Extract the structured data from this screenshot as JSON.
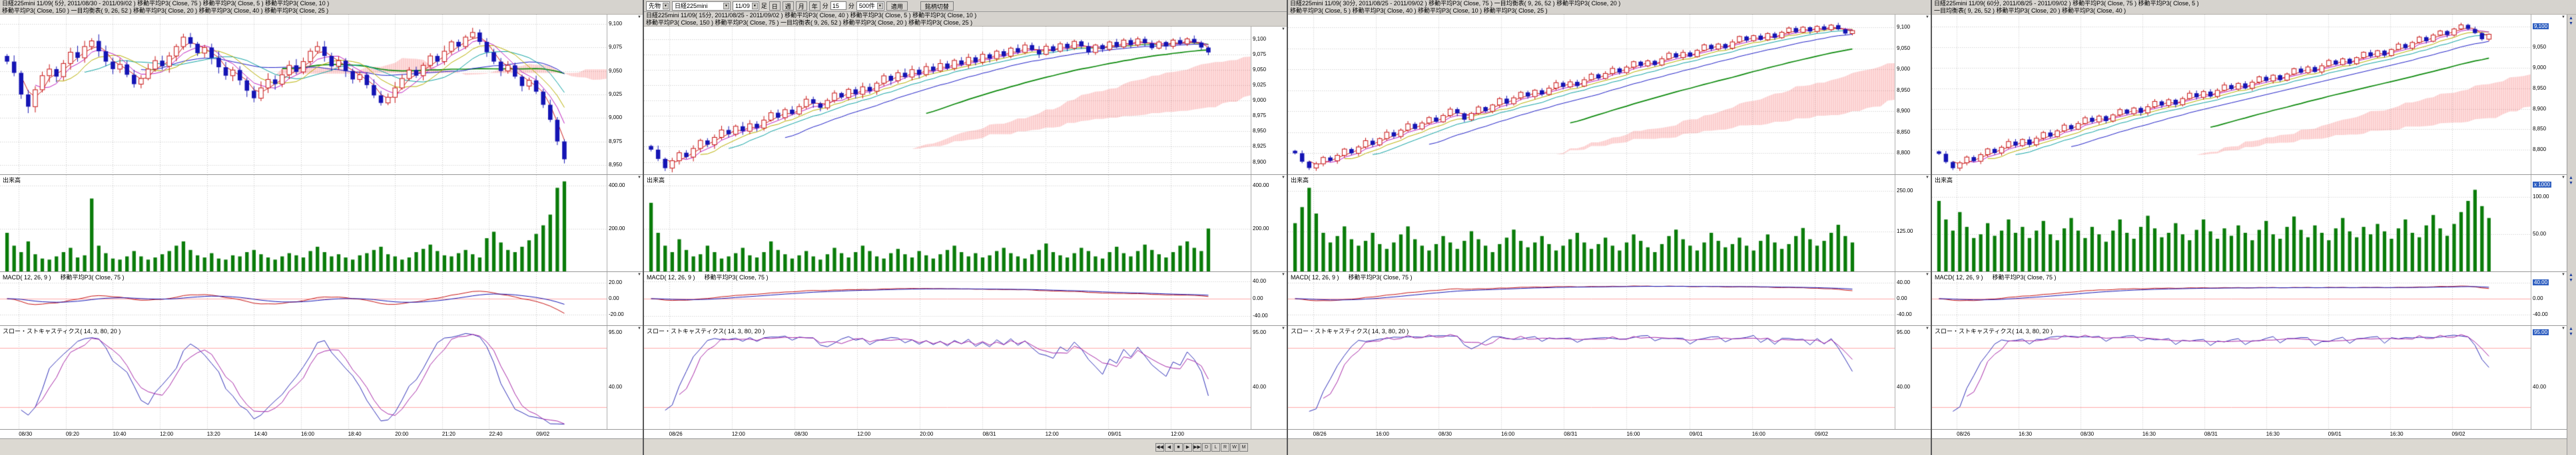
{
  "toolbar": {
    "category": "先物",
    "symbol": "日経225mini",
    "contract": "11/09",
    "bar_label": "足",
    "period_buttons": [
      "日",
      "週",
      "月",
      "年"
    ],
    "minute_label": "分",
    "minutes_value": "15",
    "minute_unit": "分",
    "count": "500件",
    "apply_label": "適用",
    "switch_label": "銘柄切替"
  },
  "nav_buttons": [
    "◀◀",
    "◀",
    "■",
    "▶",
    "▶▶",
    "D",
    "L",
    "R",
    "W",
    "M"
  ],
  "chart_data": [
    {
      "type": "candlestick",
      "name": "5min",
      "legend1": "日経225mini 11/09( 5分, 2011/08/30 - 2011/09/02 )  移動平均P3( Close, 75 )  移動平均P3( Close, 5 )  移動平均P3( Close, 10 )",
      "legend2": "移動平均P3( Close, 150 )  一目均衡表( 9, 26, 52 )  移動平均P3( Close, 20 )  移動平均P3( Close, 40 )  移動平均P3( Close, 25 )",
      "volume_label": "出来高",
      "macd_label": "MACD( 12, 26, 9 )",
      "macd_label2": "移動平均P3( Close, 75 )",
      "stoch_label": "スロー・ストキャスティクス( 14, 3, 80, 20 )",
      "y_labels": [
        "9,100",
        "9,075",
        "9,050",
        "9,025",
        "9,000",
        "8,975",
        "8,950"
      ],
      "ymin": 8940,
      "ymax": 9110,
      "vol_labels": [
        "400.00",
        "200.00"
      ],
      "vol_max": 450,
      "macd_labels": [
        "20.00",
        "0.00",
        "-20.00"
      ],
      "macd_scale": 30,
      "stoch_labels": [
        "95.00",
        "40.00"
      ],
      "x_labels": [
        "08/30",
        "09:20",
        "10:40",
        "12:00",
        "13:20",
        "14:40",
        "16:00",
        "18:40",
        "20:00",
        "21:20",
        "22:40",
        "09/02"
      ],
      "closes": [
        9060,
        9048,
        9025,
        9012,
        9030,
        9045,
        9052,
        9044,
        9058,
        9070,
        9064,
        9076,
        9082,
        9071,
        9060,
        9052,
        9057,
        9046,
        9036,
        9042,
        9052,
        9061,
        9055,
        9066,
        9076,
        9086,
        9079,
        9069,
        9075,
        9064,
        9054,
        9045,
        9051,
        9040,
        9029,
        9021,
        9032,
        9041,
        9036,
        9046,
        9056,
        9049,
        9060,
        9071,
        9076,
        9066,
        9055,
        9061,
        9050,
        9041,
        9046,
        9035,
        9024,
        9016,
        9022,
        9032,
        9042,
        9051,
        9045,
        9056,
        9066,
        9060,
        9071,
        9081,
        9076,
        9086,
        9091,
        9081,
        9070,
        9060,
        9050,
        9056,
        9044,
        9034,
        9040,
        9028,
        9014,
        8998,
        8975,
        8956
      ],
      "volumes": [
        180,
        120,
        90,
        140,
        80,
        60,
        55,
        70,
        90,
        110,
        65,
        75,
        340,
        120,
        85,
        60,
        55,
        70,
        95,
        70,
        55,
        65,
        80,
        95,
        120,
        140,
        100,
        75,
        65,
        85,
        60,
        55,
        75,
        70,
        90,
        100,
        80,
        65,
        55,
        70,
        85,
        75,
        65,
        95,
        115,
        90,
        70,
        80,
        65,
        55,
        75,
        85,
        100,
        115,
        80,
        70,
        55,
        65,
        90,
        105,
        125,
        95,
        75,
        70,
        85,
        100,
        80,
        65,
        155,
        185,
        135,
        100,
        90,
        115,
        145,
        175,
        215,
        265,
        390,
        420
      ]
    },
    {
      "type": "candlestick",
      "name": "15min",
      "has_nav": true,
      "legend1": "日経225mini 11/09( 15分, 2011/08/25 - 2011/09/02 )  移動平均P3( Close, 40 )  移動平均P3( Close, 5 )  移動平均P3( Close, 10 )",
      "legend2": "移動平均P3( Close, 150 )  移動平均P3( Close, 75 )  一目均衡表( 9, 26, 52 )  移動平均P3( Close, 20 )  移動平均P3( Close, 25 )",
      "volume_label": "出来高",
      "macd_label": "MACD( 12, 26, 9 )",
      "macd_label2": "移動平均P3( Close, 75 )",
      "stoch_label": "スロー・ストキャスティクス( 14, 3, 80, 20 )",
      "y_labels": [
        "9,100",
        "9,075",
        "9,050",
        "9,025",
        "9,000",
        "8,975",
        "8,950",
        "8,925",
        "8,900"
      ],
      "ymin": 8880,
      "ymax": 9120,
      "vol_labels": [
        "400.00",
        "200.00"
      ],
      "vol_max": 450,
      "macd_labels": [
        "40.00",
        "0.00",
        "-40.00"
      ],
      "macd_scale": 55,
      "stoch_labels": [
        "95.00",
        "40.00"
      ],
      "x_labels": [
        "08/26",
        "12:00",
        "08/30",
        "12:00",
        "20:00",
        "08/31",
        "12:00",
        "09/01",
        "12:00"
      ],
      "closes": [
        8920,
        8905,
        8890,
        8902,
        8915,
        8908,
        8922,
        8935,
        8928,
        8940,
        8952,
        8945,
        8958,
        8950,
        8962,
        8955,
        8968,
        8980,
        8972,
        8985,
        8978,
        8990,
        9002,
        8995,
        8988,
        9000,
        9012,
        9005,
        9018,
        9010,
        9022,
        9015,
        9028,
        9040,
        9032,
        9045,
        9038,
        9050,
        9042,
        9055,
        9048,
        9060,
        9052,
        9065,
        9058,
        9070,
        9062,
        9075,
        9068,
        9080,
        9072,
        9085,
        9078,
        9090,
        9082,
        9075,
        9088,
        9080,
        9092,
        9085,
        9096,
        9088,
        9078,
        9090,
        9083,
        9095,
        9087,
        9098,
        9090,
        9100,
        9093,
        9085,
        9095,
        9088,
        9098,
        9092,
        9100,
        9094,
        9086,
        9078
      ],
      "volumes": [
        320,
        180,
        120,
        90,
        150,
        100,
        70,
        80,
        120,
        90,
        60,
        70,
        85,
        110,
        75,
        65,
        90,
        140,
        100,
        80,
        60,
        75,
        95,
        70,
        55,
        80,
        110,
        85,
        65,
        90,
        120,
        95,
        70,
        60,
        85,
        105,
        80,
        65,
        95,
        75,
        60,
        80,
        100,
        120,
        90,
        70,
        85,
        65,
        75,
        95,
        110,
        85,
        70,
        60,
        80,
        100,
        130,
        90,
        75,
        65,
        85,
        110,
        95,
        70,
        60,
        90,
        115,
        85,
        70,
        95,
        125,
        100,
        80,
        65,
        90,
        120,
        140,
        110,
        95,
        200
      ]
    },
    {
      "type": "candlestick",
      "name": "30min",
      "legend1": "日経225mini 11/09( 30分, 2011/08/25 - 2011/09/02 )  移動平均P3( Close, 75 )  一目均衡表( 9, 26, 52 )  移動平均P3( Close, 20 )",
      "legend2": "移動平均P3( Close, 5 )  移動平均P3( Close, 40 )  移動平均P3( Close, 10 )  移動平均P3( Close, 25 )",
      "volume_label": "出来高",
      "macd_label": "MACD( 12, 26, 9 )",
      "macd_label2": "移動平均P3( Close, 75 )",
      "stoch_label": "スロー・ストキャスティクス( 14, 3, 80, 20 )",
      "y_labels": [
        "9,100",
        "9,050",
        "9,000",
        "8,950",
        "8,900",
        "8,850",
        "8,800"
      ],
      "ymin": 8750,
      "ymax": 9130,
      "vol_labels": [
        "250.00",
        "125.00"
      ],
      "vol_max": 300,
      "macd_labels": [
        "40.00",
        "0.00",
        "-40.00"
      ],
      "macd_scale": 60,
      "stoch_labels": [
        "95.00",
        "40.00"
      ],
      "x_labels": [
        "08/26",
        "16:00",
        "08/30",
        "16:00",
        "08/31",
        "16:00",
        "09/01",
        "16:00",
        "09/02"
      ],
      "closes": [
        8800,
        8780,
        8765,
        8775,
        8790,
        8782,
        8795,
        8810,
        8800,
        8815,
        8830,
        8820,
        8835,
        8850,
        8840,
        8855,
        8870,
        8858,
        8872,
        8885,
        8875,
        8890,
        8905,
        8895,
        8880,
        8895,
        8910,
        8900,
        8915,
        8930,
        8918,
        8932,
        8945,
        8935,
        8950,
        8940,
        8955,
        8968,
        8958,
        8970,
        8960,
        8975,
        8988,
        8978,
        8990,
        9002,
        8992,
        9005,
        9018,
        9008,
        9020,
        9010,
        9025,
        9038,
        9028,
        9040,
        9030,
        9045,
        9058,
        9048,
        9060,
        9050,
        9065,
        9078,
        9068,
        9080,
        9070,
        9085,
        9075,
        9088,
        9098,
        9088,
        9100,
        9090,
        9102,
        9094,
        9105,
        9095,
        9085,
        9092
      ],
      "volumes": [
        150,
        200,
        260,
        180,
        120,
        90,
        110,
        140,
        100,
        80,
        95,
        120,
        85,
        70,
        90,
        115,
        140,
        100,
        80,
        65,
        85,
        110,
        90,
        70,
        95,
        125,
        100,
        80,
        60,
        85,
        105,
        130,
        95,
        75,
        90,
        110,
        85,
        65,
        80,
        100,
        120,
        90,
        70,
        85,
        105,
        80,
        65,
        90,
        115,
        95,
        75,
        60,
        85,
        110,
        130,
        100,
        80,
        65,
        90,
        120,
        95,
        75,
        85,
        105,
        80,
        65,
        95,
        115,
        90,
        70,
        85,
        110,
        135,
        100,
        80,
        95,
        120,
        145,
        110,
        90
      ]
    },
    {
      "type": "candlestick",
      "name": "60min",
      "highlight_axis": true,
      "vol_note": "x 1000",
      "legend1": "日経225mini 11/09( 60分, 2011/08/25 - 2011/09/02 )  移動平均P3( Close, 75 )  移動平均P3( Close, 5 )",
      "legend2": "一目均衡表( 9, 26, 52 )  移動平均P3( Close, 20 )  移動平均P3( Close, 40 )",
      "volume_label": "出来高",
      "macd_label": "MACD( 12, 26, 9 )",
      "macd_label2": "移動平均P3( Close, 75 )",
      "stoch_label": "スロー・ストキャスティクス( 14, 3, 80, 20 )",
      "y_labels": [
        "9,100",
        "9,050",
        "9,000",
        "8,950",
        "8,900",
        "8,850",
        "8,800"
      ],
      "ymin": 8740,
      "ymax": 9130,
      "vol_labels": [
        "100.00",
        "50.00"
      ],
      "vol_max": 130,
      "macd_labels": [
        "40.00",
        "0.00",
        "-40.00"
      ],
      "macd_scale": 60,
      "stoch_labels": [
        "95.00",
        "40.00"
      ],
      "x_labels": [
        "08/26",
        "16:30",
        "08/30",
        "16:30",
        "08/31",
        "16:30",
        "09/01",
        "16:30",
        "09/02"
      ],
      "closes": [
        8790,
        8770,
        8755,
        8768,
        8782,
        8772,
        8788,
        8802,
        8792,
        8806,
        8820,
        8810,
        8825,
        8812,
        8828,
        8842,
        8832,
        8846,
        8860,
        8850,
        8864,
        8878,
        8868,
        8882,
        8870,
        8885,
        8898,
        8888,
        8902,
        8890,
        8905,
        8918,
        8908,
        8922,
        8910,
        8925,
        8938,
        8928,
        8942,
        8930,
        8945,
        8958,
        8948,
        8962,
        8950,
        8965,
        8978,
        8968,
        8982,
        8970,
        8985,
        8998,
        8988,
        9002,
        8990,
        9005,
        9018,
        9008,
        9022,
        9010,
        9025,
        9038,
        9028,
        9042,
        9030,
        9045,
        9058,
        9048,
        9062,
        9075,
        9065,
        9080,
        9090,
        9080,
        9095,
        9105,
        9095,
        9085,
        9070,
        9082
      ],
      "volumes": [
        95,
        70,
        55,
        80,
        60,
        45,
        50,
        65,
        48,
        55,
        70,
        52,
        60,
        45,
        55,
        68,
        50,
        42,
        58,
        72,
        55,
        45,
        60,
        50,
        40,
        55,
        70,
        52,
        44,
        60,
        75,
        58,
        46,
        52,
        65,
        50,
        42,
        56,
        70,
        54,
        44,
        58,
        48,
        62,
        52,
        42,
        56,
        68,
        50,
        44,
        60,
        74,
        56,
        46,
        62,
        52,
        42,
        58,
        72,
        54,
        46,
        60,
        50,
        64,
        54,
        44,
        58,
        70,
        52,
        46,
        62,
        76,
        58,
        48,
        64,
        80,
        95,
        110,
        88,
        72
      ]
    }
  ]
}
